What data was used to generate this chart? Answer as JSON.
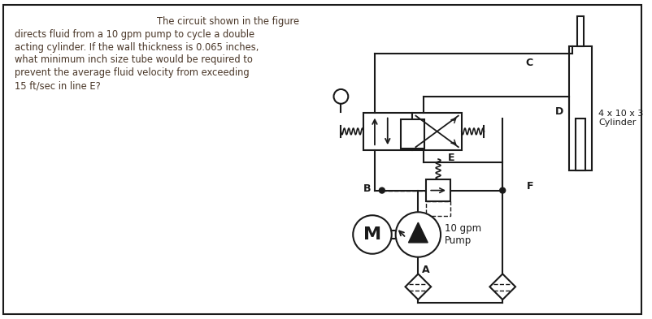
{
  "text_color": "#4a3728",
  "line_color": "#1a1a1a",
  "bg_color": "#ffffff",
  "pump_label": "10 gpm\nPump",
  "motor_label": "M",
  "cylinder_label": "4 x 10 x 3\nCylinder"
}
